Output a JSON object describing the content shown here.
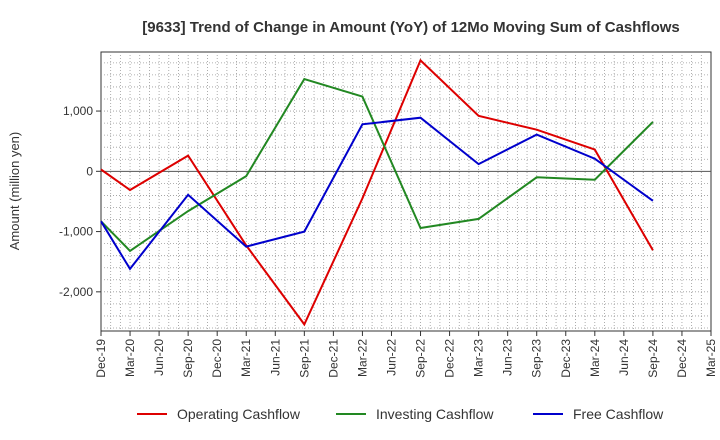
{
  "chart_data": {
    "type": "line",
    "title": "[9633]  Trend of Change in Amount (YoY) of 12Mo Moving Sum of Cashflows",
    "xlabel": "",
    "ylabel": "Amount (million yen)",
    "categories": [
      "Dec-19",
      "Mar-20",
      "Jun-20",
      "Sep-20",
      "Dec-20",
      "Mar-21",
      "Jun-21",
      "Sep-21",
      "Dec-21",
      "Mar-22",
      "Jun-22",
      "Sep-22",
      "Dec-22",
      "Mar-23",
      "Jun-23",
      "Sep-23",
      "Dec-23",
      "Mar-24",
      "Jun-24",
      "Sep-24",
      "Dec-24",
      "Mar-25"
    ],
    "ylim": [
      -2650,
      1980
    ],
    "yticks": [
      {
        "value": 1000,
        "label": "1,000"
      },
      {
        "value": 0,
        "label": "0"
      },
      {
        "value": -1000,
        "label": "-1,000"
      },
      {
        "value": -2000,
        "label": "-2,000"
      }
    ],
    "grid": true,
    "legend_position": "bottom",
    "series": [
      {
        "name": "Operating Cashflow",
        "color": "#dd0000",
        "values": [
          30,
          -310,
          null,
          260,
          null,
          -1230,
          null,
          -2540,
          null,
          -450,
          null,
          1840,
          null,
          920,
          null,
          690,
          null,
          360,
          null,
          -1310,
          null,
          null
        ]
      },
      {
        "name": "Investing Cashflow",
        "color": "#228822",
        "values": [
          -830,
          -1320,
          null,
          -660,
          null,
          -80,
          null,
          1530,
          null,
          1240,
          null,
          -940,
          null,
          -790,
          null,
          -100,
          null,
          -140,
          null,
          820,
          null,
          null
        ]
      },
      {
        "name": "Free Cashflow",
        "color": "#0000cc",
        "values": [
          -830,
          -1620,
          null,
          -390,
          null,
          -1250,
          null,
          -1000,
          null,
          780,
          null,
          890,
          null,
          120,
          null,
          610,
          null,
          210,
          null,
          -490,
          null,
          null
        ]
      }
    ]
  }
}
